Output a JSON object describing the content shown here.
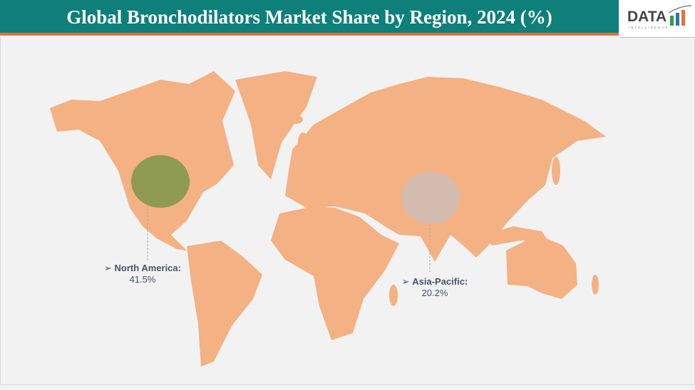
{
  "header": {
    "title": "Global Bronchodilators Market Share by Region, 2024 (%)"
  },
  "logo": {
    "text": "DATA",
    "subtext": "INTELLIGENCE"
  },
  "colors": {
    "title_bar": "#0f7f79",
    "accent_stripe": "#e97132",
    "land": "#f4b183",
    "north_america_bubble": "#8f9a52",
    "asia_pacific_bubble": "#d3bcae",
    "label_text": "#44546a"
  },
  "regions": [
    {
      "name": "North America:",
      "value": "41.5%"
    },
    {
      "name": "Asia-Pacific:",
      "value": "20.2%"
    }
  ],
  "icons": {
    "label_marker": "arrowhead-right-icon"
  }
}
